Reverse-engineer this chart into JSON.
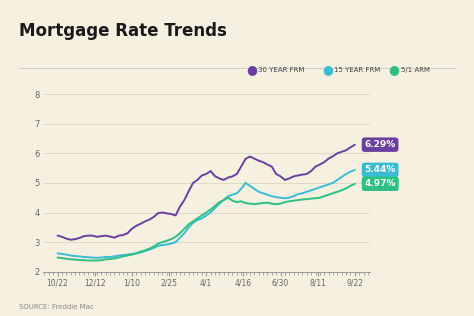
{
  "title": "Mortgage Rate Trends",
  "background_color": "#f5f0e0",
  "source_text": "SOURCE: Freddie Mac",
  "x_labels": [
    "10/22",
    "12/12",
    "1/10",
    "2/25",
    "4/1",
    "4/16",
    "6/30",
    "8/11",
    "9/22"
  ],
  "ylim": [
    2,
    8.4
  ],
  "yticks": [
    2,
    3,
    4,
    5,
    6,
    7,
    8
  ],
  "legend": [
    {
      "label": "30 YEAR FRM",
      "color": "#6B3FA0"
    },
    {
      "label": "15 YEAR FRM",
      "color": "#3ABCD4"
    },
    {
      "label": "5/1 ARM",
      "color": "#2EBF82"
    }
  ],
  "end_labels": [
    {
      "text": "6.29%",
      "color": "#6B3FA0"
    },
    {
      "text": "5.44%",
      "color": "#3ABCD4"
    },
    {
      "text": "4.97%",
      "color": "#2EBF82"
    }
  ],
  "series_30yr": [
    3.22,
    3.18,
    3.12,
    3.08,
    3.1,
    3.14,
    3.2,
    3.22,
    3.22,
    3.18,
    3.2,
    3.22,
    3.19,
    3.15,
    3.22,
    3.24,
    3.3,
    3.45,
    3.55,
    3.62,
    3.7,
    3.76,
    3.85,
    3.98,
    4.0,
    3.97,
    3.95,
    3.9,
    4.2,
    4.42,
    4.72,
    5.0,
    5.1,
    5.25,
    5.3,
    5.4,
    5.23,
    5.15,
    5.1,
    5.18,
    5.22,
    5.3,
    5.55,
    5.81,
    5.89,
    5.82,
    5.75,
    5.7,
    5.62,
    5.55,
    5.3,
    5.22,
    5.1,
    5.15,
    5.22,
    5.25,
    5.28,
    5.3,
    5.4,
    5.55,
    5.62,
    5.7,
    5.82,
    5.9,
    6.0,
    6.05,
    6.1,
    6.2,
    6.29
  ],
  "series_15yr": [
    2.62,
    2.6,
    2.58,
    2.55,
    2.53,
    2.52,
    2.5,
    2.49,
    2.48,
    2.47,
    2.48,
    2.5,
    2.5,
    2.52,
    2.55,
    2.56,
    2.58,
    2.6,
    2.62,
    2.65,
    2.7,
    2.75,
    2.8,
    2.88,
    2.9,
    2.92,
    2.95,
    3.0,
    3.15,
    3.3,
    3.5,
    3.65,
    3.75,
    3.8,
    3.9,
    4.0,
    4.15,
    4.3,
    4.42,
    4.55,
    4.6,
    4.65,
    4.8,
    5.0,
    4.9,
    4.8,
    4.7,
    4.65,
    4.6,
    4.55,
    4.52,
    4.5,
    4.48,
    4.5,
    4.55,
    4.62,
    4.65,
    4.7,
    4.75,
    4.8,
    4.85,
    4.9,
    4.95,
    5.0,
    5.1,
    5.2,
    5.3,
    5.38,
    5.44
  ],
  "series_5arm": [
    2.48,
    2.46,
    2.44,
    2.42,
    2.41,
    2.4,
    2.39,
    2.38,
    2.38,
    2.38,
    2.39,
    2.42,
    2.43,
    2.45,
    2.48,
    2.52,
    2.55,
    2.58,
    2.62,
    2.68,
    2.72,
    2.78,
    2.85,
    2.95,
    3.0,
    3.05,
    3.1,
    3.18,
    3.3,
    3.45,
    3.6,
    3.7,
    3.8,
    3.9,
    4.0,
    4.1,
    4.22,
    4.35,
    4.42,
    4.5,
    4.4,
    4.35,
    4.38,
    4.32,
    4.3,
    4.28,
    4.3,
    4.32,
    4.33,
    4.3,
    4.28,
    4.3,
    4.35,
    4.38,
    4.4,
    4.42,
    4.44,
    4.45,
    4.47,
    4.48,
    4.5,
    4.55,
    4.6,
    4.65,
    4.7,
    4.75,
    4.82,
    4.9,
    4.97
  ]
}
